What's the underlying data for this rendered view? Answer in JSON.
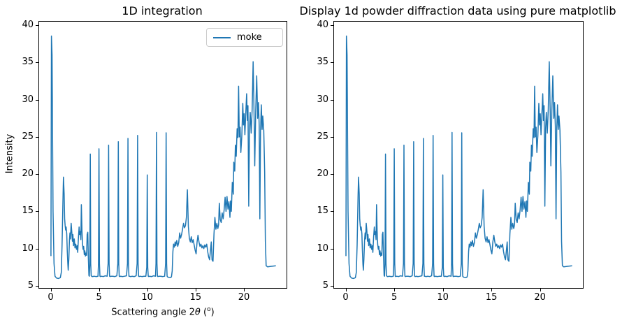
{
  "figure": {
    "background_color": "#ffffff",
    "line_color": "#1f77b4",
    "text_color": "#000000",
    "spine_color": "#000000",
    "legend_border_color": "#cccccc"
  },
  "chart_data": [
    {
      "type": "line",
      "title": "1D integration",
      "xlabel": "Scattering angle 2θ (º)",
      "xlabel_parts": {
        "prefix": "Scattering angle 2",
        "theta": "θ",
        "unit_open": " (",
        "unit_sup": "o",
        "unit_close": ")"
      },
      "ylabel": "Intensity",
      "xlim": [
        -1.19,
        24.41
      ],
      "ylim": [
        4.72,
        40.47
      ],
      "xticks": [
        0,
        5,
        10,
        15,
        20
      ],
      "yticks": [
        5,
        10,
        15,
        20,
        25,
        30,
        35,
        40
      ],
      "grid": false,
      "legend": {
        "visible": true,
        "position": "upper right",
        "entries": [
          "moke"
        ]
      },
      "series": [
        {
          "name": "moke",
          "color": "#1f77b4",
          "x": [
            0.03,
            0.08,
            0.15,
            0.25,
            0.35,
            0.45,
            0.6,
            0.8,
            1.0,
            1.1,
            1.18,
            1.28,
            1.33,
            1.4,
            1.45,
            1.5,
            1.55,
            1.6,
            1.67,
            1.72,
            1.78,
            1.82,
            1.88,
            1.95,
            2.0,
            2.05,
            2.12,
            2.18,
            2.25,
            2.3,
            2.37,
            2.45,
            2.52,
            2.6,
            2.68,
            2.75,
            2.8,
            2.88,
            2.95,
            3.0,
            3.07,
            3.13,
            3.18,
            3.24,
            3.3,
            3.36,
            3.42,
            3.48,
            3.54,
            3.6,
            3.66,
            3.72,
            3.78,
            3.84,
            3.9,
            3.96,
            4.0,
            4.05,
            4.1,
            4.15,
            4.2,
            4.3,
            4.5,
            4.7,
            4.9,
            4.95,
            5.0,
            5.05,
            5.1,
            5.15,
            5.25,
            5.45,
            5.65,
            5.85,
            5.95,
            6.0,
            6.05,
            6.1,
            6.15,
            6.25,
            6.45,
            6.65,
            6.85,
            6.95,
            7.0,
            7.05,
            7.1,
            7.15,
            7.25,
            7.45,
            7.65,
            7.85,
            7.95,
            8.0,
            8.05,
            8.1,
            8.15,
            8.25,
            8.45,
            8.65,
            8.85,
            8.95,
            9.0,
            9.05,
            9.1,
            9.15,
            9.25,
            9.45,
            9.65,
            9.85,
            9.95,
            10.0,
            10.05,
            10.1,
            10.15,
            10.25,
            10.45,
            10.65,
            10.85,
            10.9,
            10.95,
            11.0,
            11.05,
            11.1,
            11.2,
            11.4,
            11.6,
            11.8,
            11.9,
            11.95,
            12.0,
            12.05,
            12.1,
            12.2,
            12.35,
            12.5,
            12.58,
            12.65,
            12.72,
            12.8,
            12.88,
            12.95,
            13.05,
            13.15,
            13.25,
            13.35,
            13.45,
            13.55,
            13.65,
            13.75,
            13.85,
            13.95,
            14.05,
            14.15,
            14.25,
            14.35,
            14.45,
            14.55,
            14.65,
            14.75,
            14.85,
            14.95,
            15.05,
            15.15,
            15.25,
            15.35,
            15.45,
            15.55,
            15.65,
            15.75,
            15.85,
            15.95,
            16.05,
            16.15,
            16.25,
            16.35,
            16.45,
            16.55,
            16.62,
            16.7,
            16.8,
            16.9,
            17.0,
            17.1,
            17.2,
            17.3,
            17.38,
            17.45,
            17.55,
            17.65,
            17.75,
            17.85,
            17.95,
            18.05,
            18.15,
            18.25,
            18.35,
            18.45,
            18.55,
            18.62,
            18.7,
            18.8,
            18.9,
            18.95,
            19.05,
            19.12,
            19.2,
            19.3,
            19.38,
            19.45,
            19.52,
            19.6,
            19.68,
            19.78,
            19.88,
            19.95,
            20.02,
            20.1,
            20.18,
            20.28,
            20.35,
            20.42,
            20.5,
            20.58,
            20.65,
            20.75,
            20.85,
            20.95,
            21.05,
            21.12,
            21.22,
            21.32,
            21.42,
            21.5,
            21.58,
            21.65,
            21.72,
            21.8,
            21.88,
            21.95,
            22.05,
            22.15,
            22.22,
            22.3,
            22.45,
            22.7,
            23.0,
            23.3
          ],
          "y": [
            9.0,
            38.55,
            36.0,
            15.0,
            8.0,
            6.3,
            6.05,
            6.0,
            6.1,
            6.8,
            10.5,
            17.0,
            19.6,
            17.3,
            14.0,
            13.1,
            12.5,
            12.9,
            12.0,
            9.8,
            7.9,
            7.1,
            8.6,
            11.2,
            12.1,
            11.3,
            13.4,
            12.4,
            11.0,
            11.9,
            10.4,
            11.3,
            10.1,
            10.6,
            9.9,
            10.4,
            9.5,
            11.6,
            12.9,
            11.9,
            12.3,
            11.2,
            15.9,
            12.4,
            10.6,
            9.9,
            10.3,
            9.2,
            9.7,
            9.0,
            9.4,
            9.1,
            11.9,
            12.2,
            8.8,
            6.4,
            6.3,
            8.0,
            22.7,
            8.0,
            6.35,
            6.25,
            6.3,
            6.25,
            6.3,
            8.0,
            23.4,
            8.0,
            6.3,
            6.25,
            6.3,
            6.25,
            6.35,
            6.3,
            8.0,
            23.9,
            8.0,
            6.3,
            6.25,
            6.3,
            6.3,
            6.25,
            6.35,
            8.0,
            24.35,
            8.0,
            6.3,
            6.25,
            6.3,
            6.25,
            6.3,
            6.35,
            8.0,
            24.8,
            8.0,
            6.3,
            6.3,
            6.25,
            6.3,
            6.25,
            6.35,
            8.0,
            25.2,
            8.0,
            6.3,
            6.25,
            6.3,
            6.25,
            6.3,
            6.3,
            7.5,
            19.9,
            7.5,
            6.3,
            6.25,
            6.3,
            6.25,
            6.35,
            6.3,
            8.0,
            25.6,
            8.0,
            6.3,
            6.25,
            6.3,
            6.3,
            6.25,
            6.3,
            8.0,
            25.55,
            8.0,
            6.3,
            6.2,
            6.15,
            6.1,
            6.2,
            7.0,
            9.6,
            10.6,
            10.2,
            10.9,
            10.4,
            11.1,
            10.3,
            10.8,
            12.1,
            11.4,
            11.9,
            12.6,
            13.4,
            12.8,
            13.1,
            14.2,
            17.9,
            13.0,
            11.4,
            10.9,
            11.6,
            10.8,
            11.2,
            10.5,
            9.8,
            9.3,
            10.9,
            11.8,
            10.9,
            10.3,
            10.6,
            10.1,
            10.4,
            10.0,
            10.5,
            10.2,
            10.6,
            9.6,
            8.9,
            8.5,
            9.9,
            10.9,
            8.5,
            8.3,
            12.0,
            14.2,
            12.6,
            13.4,
            12.7,
            13.2,
            16.1,
            13.9,
            13.5,
            14.8,
            14.0,
            15.2,
            16.9,
            15.0,
            17.0,
            15.3,
            16.3,
            14.2,
            16.4,
            15.0,
            18.9,
            17.3,
            21.6,
            20.4,
            23.9,
            22.4,
            26.1,
            24.9,
            31.8,
            25.0,
            26.3,
            22.9,
            25.1,
            29.5,
            26.6,
            28.1,
            25.3,
            27.8,
            30.8,
            27.2,
            29.2,
            15.7,
            26.1,
            28.3,
            25.5,
            28.7,
            35.1,
            28.2,
            21.1,
            28.5,
            33.2,
            27.5,
            29.6,
            26.5,
            14.0,
            25.8,
            29.3,
            26.0,
            27.8,
            25.9,
            20.3,
            11.0,
            7.7,
            7.55,
            7.6,
            7.65,
            7.7
          ]
        }
      ]
    },
    {
      "type": "line",
      "title": "Display 1d powder diffraction data using pure matplotlib",
      "xlabel": "",
      "ylabel": "",
      "xlim": [
        -1.19,
        24.41
      ],
      "ylim": [
        4.72,
        40.47
      ],
      "xticks": [
        0,
        5,
        10,
        15,
        20
      ],
      "yticks": [
        5,
        10,
        15,
        20,
        25,
        30,
        35,
        40
      ],
      "grid": false,
      "legend": {
        "visible": false
      },
      "series_note": "plots the identical 'moke' series as chart 0"
    }
  ]
}
